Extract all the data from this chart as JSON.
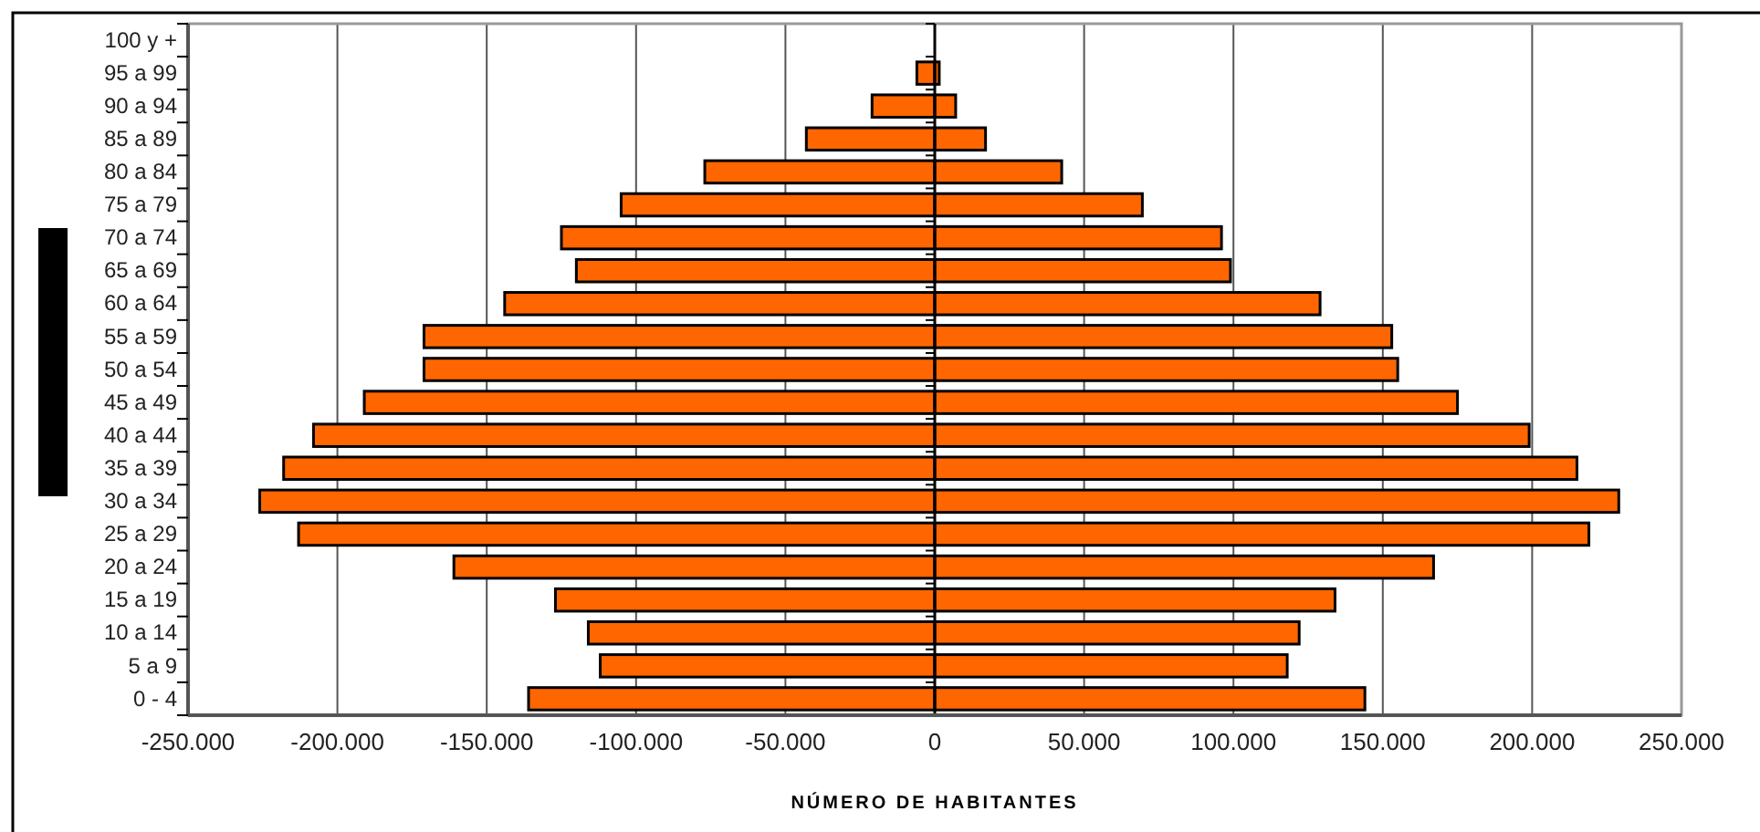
{
  "chart_data": {
    "type": "bar",
    "orientation": "horizontal",
    "xlabel": "NÚMERO DE HABITANTES",
    "categories": [
      "100 y +",
      "95 a 99",
      "90 a 94",
      "85 a 89",
      "80 a 84",
      "75 a 79",
      "70 a 74",
      "65 a 69",
      "60 a 64",
      "55 a 59",
      "50 a 54",
      "45 a 49",
      "40 a 44",
      "35 a 39",
      "30 a 34",
      "25 a 29",
      "20 a 24",
      "15 a 19",
      "10 a 14",
      "5 a 9",
      "0 - 4"
    ],
    "series": [
      {
        "color": "#ff6600",
        "values": [
          null,
          -6000,
          -21000,
          -43000,
          -77000,
          -105000,
          -125000,
          -120000,
          -144000,
          -171000,
          -171000,
          -191000,
          -208000,
          -218000,
          -226000,
          -213000,
          -161000,
          -127000,
          -116000,
          -112000,
          -136000
        ]
      },
      {
        "color": "#ff6600",
        "values": [
          null,
          1500,
          7000,
          17000,
          42500,
          69500,
          96000,
          99000,
          129000,
          153000,
          155000,
          175000,
          199000,
          215000,
          229000,
          219000,
          167000,
          134000,
          122000,
          118000,
          144000
        ]
      }
    ],
    "xlim": [
      -250000,
      250000
    ],
    "xticks": [
      {
        "value": -250000,
        "label": "-250.000"
      },
      {
        "value": -200000,
        "label": "-200.000"
      },
      {
        "value": -150000,
        "label": "-150.000"
      },
      {
        "value": -100000,
        "label": "-100.000"
      },
      {
        "value": -50000,
        "label": "-50.000"
      },
      0,
      {
        "value": 50000,
        "label": "50.000"
      },
      {
        "value": 100000,
        "label": "100.000"
      },
      {
        "value": 150000,
        "label": "150.000"
      },
      {
        "value": 200000,
        "label": "200.000"
      },
      {
        "value": 250000,
        "label": "250.000"
      }
    ],
    "grid": "x",
    "stacked": true,
    "legend": false
  }
}
